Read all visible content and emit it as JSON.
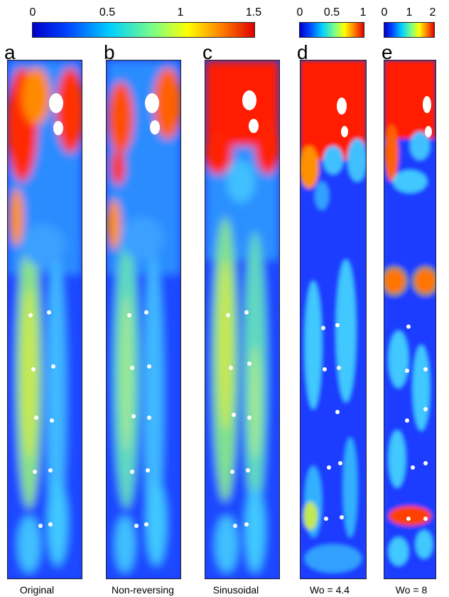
{
  "colorbars": [
    {
      "ticks": [
        "0",
        "0.5",
        "1",
        "1.5"
      ]
    },
    {
      "ticks": [
        "0",
        "0.5",
        "1"
      ]
    },
    {
      "ticks": [
        "0",
        "1",
        "2"
      ]
    }
  ],
  "panels": [
    {
      "letter": "a",
      "caption": "Original"
    },
    {
      "letter": "b",
      "caption": "Non-reversing"
    },
    {
      "letter": "c",
      "caption": "Sinusoidal"
    },
    {
      "letter": "d",
      "caption": "Wo = 4.4"
    },
    {
      "letter": "e",
      "caption": "Wo = 8"
    }
  ],
  "colors": {
    "low": "#0000ff",
    "low_mid": "#00c8ff",
    "mid": "#80ff80",
    "high_mid": "#ffd000",
    "high": "#ff0000"
  }
}
